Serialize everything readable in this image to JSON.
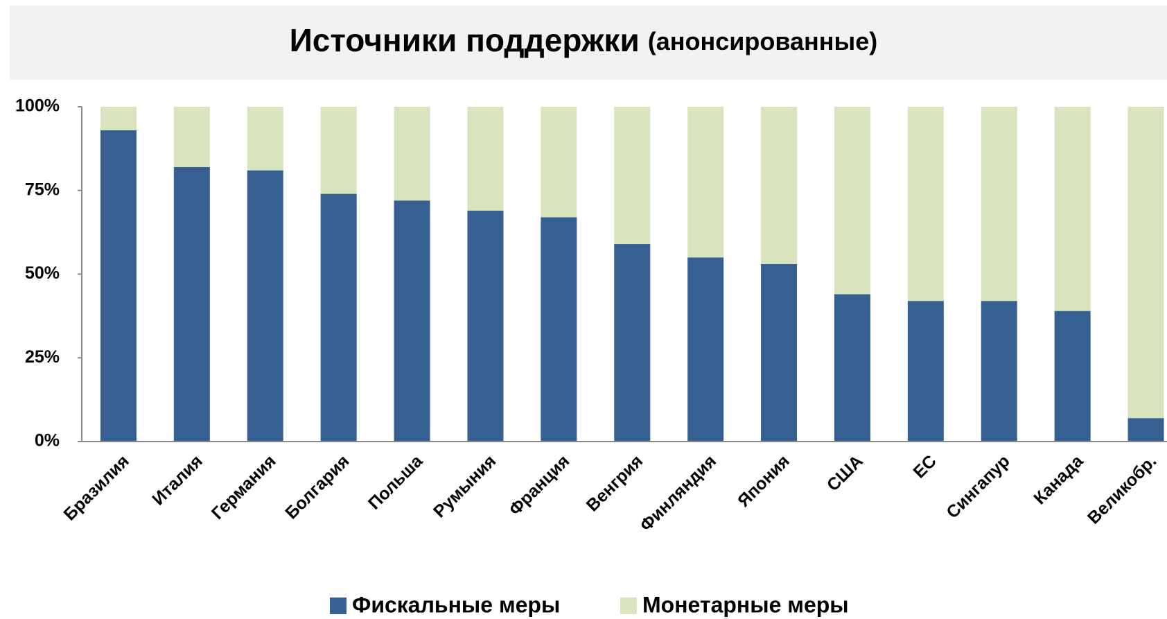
{
  "chart_data": {
    "type": "bar",
    "stacked": true,
    "title": "Источники поддержки",
    "subtitle": "(анонсированные)",
    "categories": [
      "Бразилия",
      "Италия",
      "Германия",
      "Болгария",
      "Польша",
      "Румыния",
      "Франция",
      "Венгрия",
      "Финляндия",
      "Япония",
      "США",
      "ЕС",
      "Сингапур",
      "Канада",
      "Великобр."
    ],
    "series": [
      {
        "name": "Фискальные меры",
        "color": "#376092",
        "values": [
          93,
          82,
          81,
          74,
          72,
          69,
          67,
          59,
          55,
          53,
          44,
          42,
          42,
          39,
          7
        ]
      },
      {
        "name": "Монетарные меры",
        "color": "#d7e4bd",
        "values": [
          7,
          18,
          19,
          26,
          28,
          31,
          33,
          41,
          45,
          47,
          56,
          58,
          58,
          61,
          93
        ]
      }
    ],
    "ylim": [
      0,
      100
    ],
    "yticks": [
      {
        "value": 0,
        "label": "0%"
      },
      {
        "value": 25,
        "label": "25%"
      },
      {
        "value": 50,
        "label": "50%"
      },
      {
        "value": 75,
        "label": "75%"
      },
      {
        "value": 100,
        "label": "100%"
      }
    ],
    "grid": false,
    "legend": "bottom"
  }
}
